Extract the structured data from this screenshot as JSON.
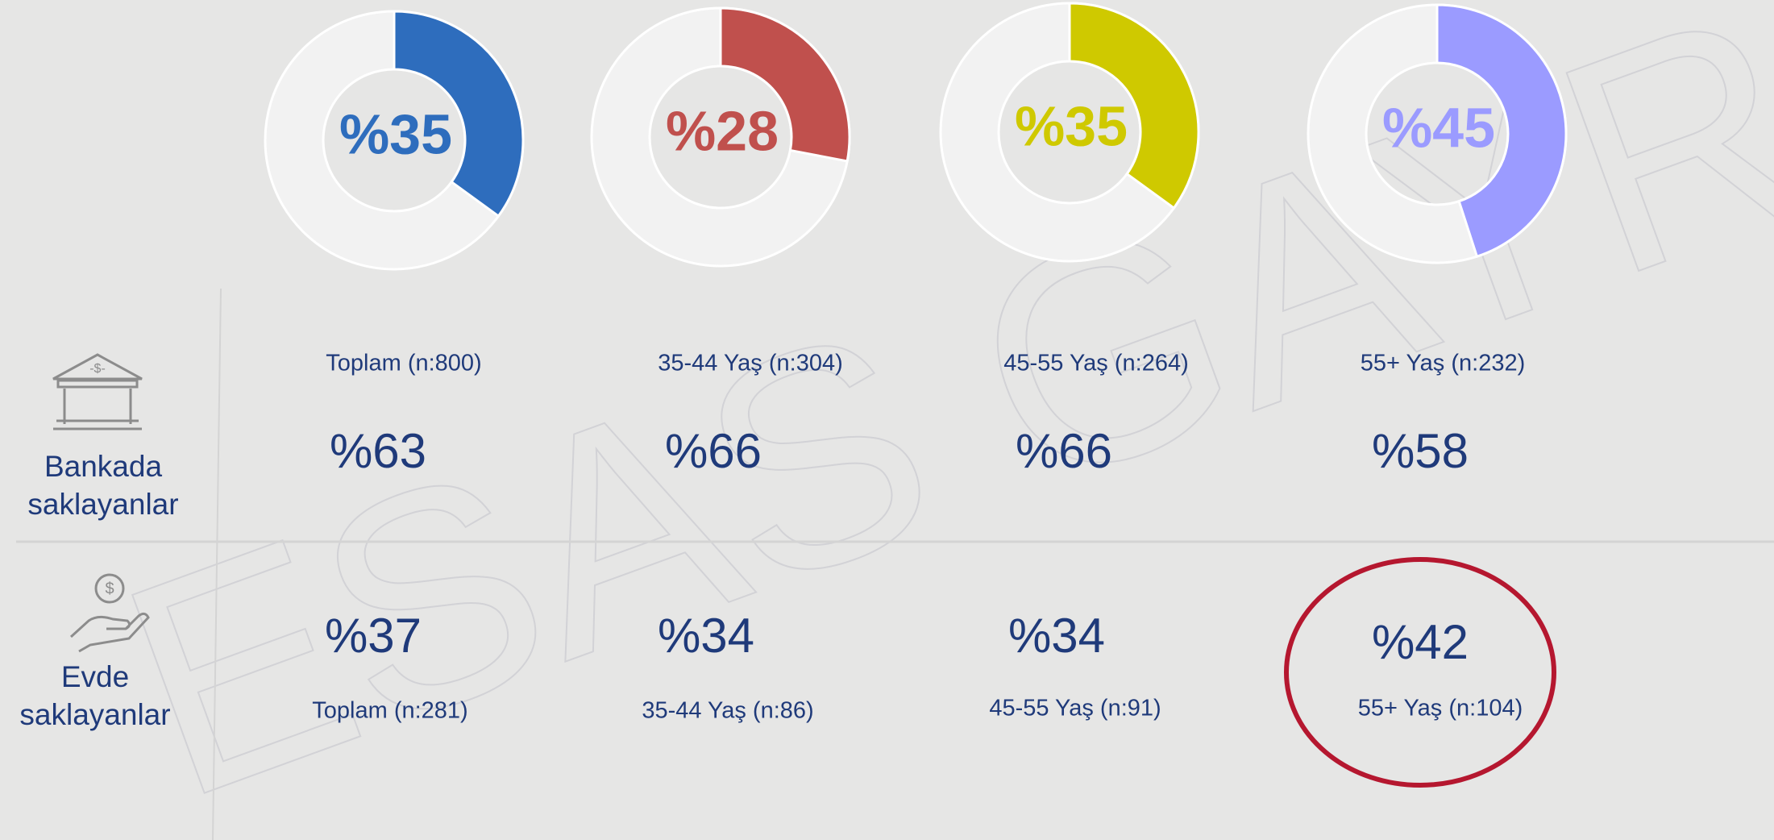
{
  "chart_data": [
    {
      "type": "donut",
      "values": [
        35
      ],
      "value_labels": [
        "%35"
      ],
      "color": "#2e6dbd"
    },
    {
      "type": "donut",
      "values": [
        28
      ],
      "value_labels": [
        "%28"
      ],
      "color": "#c0504d"
    },
    {
      "type": "donut",
      "values": [
        35
      ],
      "value_labels": [
        "%35"
      ],
      "color": "#cfc900"
    },
    {
      "type": "donut",
      "values": [
        45
      ],
      "value_labels": [
        "%45"
      ],
      "color": "#9b9bff"
    }
  ],
  "rows": [
    {
      "label": "Bankada saklayanlar",
      "groups": [
        "Toplam (n:800)",
        "35-44 Yaş (n:304)",
        "45-55 Yaş (n:264)",
        "55+ Yaş (n:232)"
      ],
      "values": [
        "%63",
        "%66",
        "%66",
        "%58"
      ]
    },
    {
      "label": "Evde saklayanlar",
      "groups": [
        "Toplam (n:281)",
        "35-44 Yaş (n:86)",
        "45-55 Yaş (n:91)",
        "55+ Yaş (n:104)"
      ],
      "values": [
        "%37",
        "%34",
        "%34",
        "%42"
      ]
    }
  ],
  "watermark": "ESAS GAYRİ"
}
